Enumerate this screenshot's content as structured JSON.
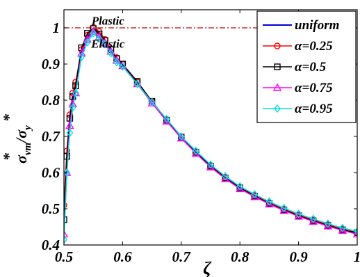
{
  "chart_data": {
    "type": "line",
    "xlabel": "ζ",
    "ylabel": {
      "main": "σ",
      "sub1": "vm",
      "sep": "/",
      "main2": "σ",
      "sub2": "y",
      "sup": "*"
    },
    "xlim": [
      0.5,
      1.0
    ],
    "ylim": [
      0.4,
      1.05
    ],
    "xticks": [
      "0.5",
      "0.6",
      "0.7",
      "0.8",
      "0.9",
      "1"
    ],
    "xtick_values": [
      0.5,
      0.6,
      0.7,
      0.8,
      0.9,
      1.0
    ],
    "yticks": [
      "0.4",
      "0.5",
      "0.6",
      "0.7",
      "0.8",
      "0.9",
      "1"
    ],
    "ytick_values": [
      0.4,
      0.5,
      0.6,
      0.7,
      0.8,
      0.9,
      1.0
    ],
    "grid": false,
    "legend_position": "top-right",
    "reference_line": {
      "y": 1.0,
      "color": "#cc0000",
      "style": "dash-dot"
    },
    "annotations": [
      {
        "text": "Plastic",
        "x": 0.575,
        "y": 1.02
      },
      {
        "text": "Elastic",
        "x": 0.575,
        "y": 0.957
      }
    ],
    "x": [
      0.5,
      0.505,
      0.51,
      0.515,
      0.52,
      0.53,
      0.54,
      0.55,
      0.56,
      0.57,
      0.58,
      0.59,
      0.6,
      0.625,
      0.65,
      0.675,
      0.7,
      0.725,
      0.75,
      0.775,
      0.8,
      0.825,
      0.85,
      0.875,
      0.9,
      0.925,
      0.95,
      0.975,
      1.0
    ],
    "series": [
      {
        "name": "uniform",
        "color": "#0000cc",
        "marker": "none",
        "values": [
          0.47,
          0.6,
          0.74,
          0.8,
          0.84,
          0.93,
          0.975,
          0.998,
          0.985,
          0.965,
          0.94,
          0.915,
          0.898,
          0.848,
          0.795,
          0.745,
          0.698,
          0.656,
          0.618,
          0.585,
          0.558,
          0.535,
          0.515,
          0.497,
          0.481,
          0.467,
          0.454,
          0.442,
          0.432
        ]
      },
      {
        "name": "α=0.25",
        "color": "#ff0000",
        "marker": "circle",
        "values": [
          0.51,
          0.66,
          0.76,
          0.82,
          0.85,
          0.94,
          0.98,
          1.0,
          0.99,
          0.968,
          0.942,
          0.918,
          0.9,
          0.85,
          0.797,
          0.747,
          0.7,
          0.658,
          0.62,
          0.587,
          0.56,
          0.537,
          0.517,
          0.499,
          0.483,
          0.469,
          0.456,
          0.444,
          0.434
        ]
      },
      {
        "name": "α=0.5",
        "color": "#000000",
        "marker": "square",
        "values": [
          0.47,
          0.645,
          0.75,
          0.81,
          0.84,
          0.945,
          0.985,
          0.998,
          0.983,
          0.965,
          0.94,
          0.915,
          0.9,
          0.852,
          0.797,
          0.745,
          0.698,
          0.656,
          0.618,
          0.585,
          0.558,
          0.535,
          0.515,
          0.497,
          0.481,
          0.467,
          0.454,
          0.442,
          0.434
        ]
      },
      {
        "name": "α=0.75",
        "color": "#ff00ff",
        "marker": "triangle",
        "values": [
          0.43,
          0.6,
          0.73,
          0.79,
          0.82,
          0.93,
          0.968,
          0.99,
          0.975,
          0.958,
          0.935,
          0.91,
          0.895,
          0.845,
          0.792,
          0.742,
          0.695,
          0.653,
          0.615,
          0.583,
          0.555,
          0.533,
          0.513,
          0.495,
          0.479,
          0.465,
          0.452,
          0.44,
          0.43
        ]
      },
      {
        "name": "α=0.95",
        "color": "#00e0e0",
        "marker": "diamond",
        "values": [
          0.415,
          0.6,
          0.71,
          0.78,
          0.82,
          0.92,
          0.96,
          0.985,
          0.97,
          0.955,
          0.93,
          0.905,
          0.893,
          0.845,
          0.795,
          0.748,
          0.7,
          0.66,
          0.622,
          0.59,
          0.562,
          0.54,
          0.52,
          0.502,
          0.486,
          0.472,
          0.459,
          0.447,
          0.438
        ]
      }
    ]
  }
}
